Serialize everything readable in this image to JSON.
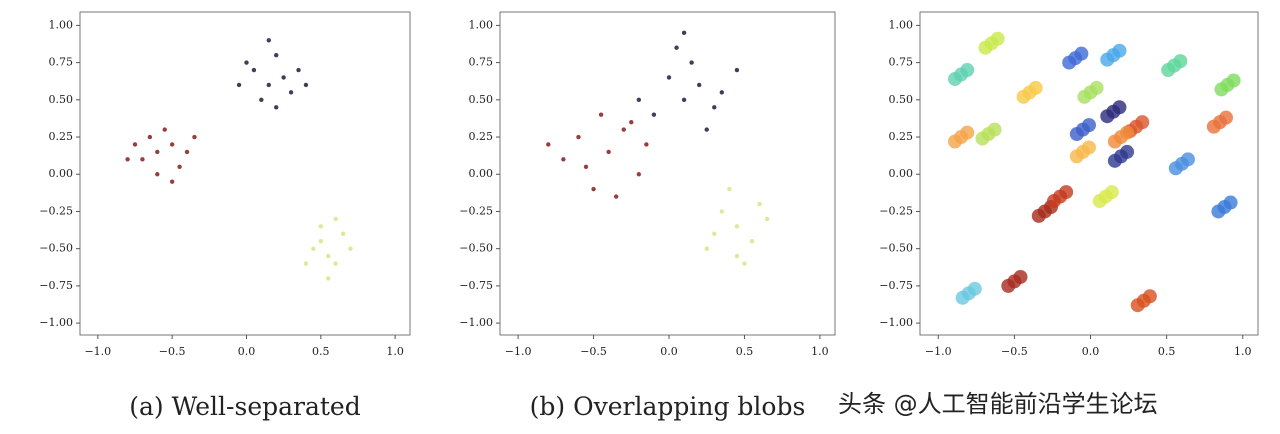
{
  "chart_data": [
    {
      "type": "scatter",
      "caption": "(a) Well-separated",
      "xlim": [
        -1.12,
        1.1
      ],
      "ylim": [
        -1.08,
        1.09
      ],
      "xticks": [
        {
          "value": -1,
          "label": "−1.0"
        },
        {
          "value": -0.5,
          "label": "−0.5"
        },
        {
          "value": 0,
          "label": "0.0"
        },
        {
          "value": 0.5,
          "label": "0.5"
        },
        {
          "value": 1,
          "label": "1.0"
        }
      ],
      "yticks": [
        {
          "value": 1,
          "label": "1.00"
        },
        {
          "value": 0.75,
          "label": "0.75"
        },
        {
          "value": 0.5,
          "label": "0.50"
        },
        {
          "value": 0.25,
          "label": "0.25"
        },
        {
          "value": 0,
          "label": "0.00"
        },
        {
          "value": -0.25,
          "label": "−0.25"
        },
        {
          "value": -0.5,
          "label": "−0.50"
        },
        {
          "value": -0.75,
          "label": "−0.75"
        },
        {
          "value": -1,
          "label": "−1.00"
        }
      ],
      "series": [
        {
          "color": "#8a2a2a",
          "x": [
            -0.6,
            -0.5,
            -0.7,
            -0.45,
            -0.55,
            -0.65,
            -0.4,
            -0.75,
            -0.5,
            -0.6,
            -0.35,
            -0.8
          ],
          "y": [
            0.15,
            0.2,
            0.1,
            0.05,
            0.3,
            0.25,
            0.15,
            0.2,
            -0.05,
            0.0,
            0.25,
            0.1
          ]
        },
        {
          "color": "#2a2a4a",
          "x": [
            0.15,
            0.25,
            0.05,
            0.3,
            0.1,
            0.2,
            0.35,
            -0.05,
            0.2,
            0.4,
            0.0,
            0.15
          ],
          "y": [
            0.6,
            0.65,
            0.7,
            0.55,
            0.5,
            0.8,
            0.7,
            0.6,
            0.45,
            0.6,
            0.75,
            0.9
          ]
        },
        {
          "color": "#d4ea8a",
          "x": [
            0.55,
            0.5,
            0.6,
            0.45,
            0.65,
            0.55,
            0.4,
            0.7,
            0.5,
            0.6
          ],
          "y": [
            -0.55,
            -0.45,
            -0.6,
            -0.5,
            -0.4,
            -0.7,
            -0.6,
            -0.5,
            -0.35,
            -0.3
          ]
        }
      ]
    },
    {
      "type": "scatter",
      "caption": "(b) Overlapping blobs",
      "xlim": [
        -1.12,
        1.1
      ],
      "ylim": [
        -1.08,
        1.09
      ],
      "xticks": [
        {
          "value": -1,
          "label": "−1.0"
        },
        {
          "value": -0.5,
          "label": "−0.5"
        },
        {
          "value": 0,
          "label": "0.0"
        },
        {
          "value": 0.5,
          "label": "0.5"
        },
        {
          "value": 1,
          "label": "1.0"
        }
      ],
      "yticks": [
        {
          "value": 1,
          "label": "1.00"
        },
        {
          "value": 0.75,
          "label": "0.75"
        },
        {
          "value": 0.5,
          "label": "0.50"
        },
        {
          "value": 0.25,
          "label": "0.25"
        },
        {
          "value": 0,
          "label": "0.00"
        },
        {
          "value": -0.25,
          "label": "−0.25"
        },
        {
          "value": -0.5,
          "label": "−0.50"
        },
        {
          "value": -0.75,
          "label": "−0.75"
        },
        {
          "value": -1,
          "label": "−1.00"
        }
      ],
      "series": [
        {
          "color": "#8a2a2a",
          "x": [
            -0.4,
            -0.3,
            -0.55,
            -0.2,
            -0.45,
            -0.6,
            -0.15,
            -0.7,
            -0.35,
            -0.5,
            -0.25,
            -0.8
          ],
          "y": [
            0.15,
            0.3,
            0.05,
            0.0,
            0.4,
            0.25,
            0.2,
            0.1,
            -0.15,
            -0.1,
            0.35,
            0.2
          ]
        },
        {
          "color": "#2a2a4a",
          "x": [
            0.1,
            0.2,
            0.0,
            0.3,
            -0.1,
            0.15,
            0.35,
            -0.2,
            0.25,
            0.45,
            0.05,
            0.1
          ],
          "y": [
            0.5,
            0.6,
            0.65,
            0.45,
            0.4,
            0.75,
            0.55,
            0.5,
            0.3,
            0.7,
            0.85,
            0.95
          ]
        },
        {
          "color": "#d4ea8a",
          "x": [
            0.45,
            0.35,
            0.55,
            0.3,
            0.6,
            0.45,
            0.25,
            0.65,
            0.4,
            0.5
          ],
          "y": [
            -0.35,
            -0.25,
            -0.45,
            -0.4,
            -0.2,
            -0.55,
            -0.5,
            -0.3,
            -0.1,
            -0.6
          ]
        }
      ]
    },
    {
      "type": "scatter",
      "xlim": [
        -1.12,
        1.1
      ],
      "ylim": [
        -1.08,
        1.09
      ],
      "xticks": [
        {
          "value": -1,
          "label": "−1.0"
        },
        {
          "value": -0.5,
          "label": "−0.5"
        },
        {
          "value": 0,
          "label": "0.0"
        },
        {
          "value": 0.5,
          "label": "0.5"
        },
        {
          "value": 1,
          "label": "1.0"
        }
      ],
      "yticks": [
        {
          "value": 1,
          "label": "1.00"
        },
        {
          "value": 0.75,
          "label": "0.75"
        },
        {
          "value": 0.5,
          "label": "0.50"
        },
        {
          "value": 0.25,
          "label": "0.25"
        },
        {
          "value": 0,
          "label": "0.00"
        },
        {
          "value": -0.25,
          "label": "−0.25"
        },
        {
          "value": -0.5,
          "label": "−0.50"
        },
        {
          "value": -0.75,
          "label": "−0.75"
        },
        {
          "value": -1,
          "label": "−1.00"
        }
      ],
      "series": [
        {
          "color": "#c8e84a",
          "x": [
            -0.65,
            -0.61,
            -0.69
          ],
          "y": [
            0.88,
            0.91,
            0.85
          ]
        },
        {
          "color": "#5ed1b0",
          "x": [
            -0.85,
            -0.81,
            -0.89
          ],
          "y": [
            0.67,
            0.7,
            0.64
          ]
        },
        {
          "color": "#f7c948",
          "x": [
            -0.4,
            -0.36,
            -0.44
          ],
          "y": [
            0.55,
            0.58,
            0.52
          ]
        },
        {
          "color": "#f5a44a",
          "x": [
            -0.85,
            -0.81,
            -0.89
          ],
          "y": [
            0.25,
            0.28,
            0.22
          ]
        },
        {
          "color": "#b8e05a",
          "x": [
            -0.67,
            -0.63,
            -0.71
          ],
          "y": [
            0.27,
            0.3,
            0.24
          ]
        },
        {
          "color": "#3e6ad6",
          "x": [
            -0.1,
            -0.06,
            -0.14
          ],
          "y": [
            0.78,
            0.81,
            0.75
          ]
        },
        {
          "color": "#4aa8e8",
          "x": [
            0.15,
            0.19,
            0.11
          ],
          "y": [
            0.8,
            0.83,
            0.77
          ]
        },
        {
          "color": "#5ed69a",
          "x": [
            0.55,
            0.59,
            0.51
          ],
          "y": [
            0.73,
            0.76,
            0.7
          ]
        },
        {
          "color": "#7fdc5e",
          "x": [
            0.9,
            0.94,
            0.86
          ],
          "y": [
            0.6,
            0.63,
            0.57
          ]
        },
        {
          "color": "#a8e060",
          "x": [
            0.0,
            0.04,
            -0.04
          ],
          "y": [
            0.55,
            0.58,
            0.52
          ]
        },
        {
          "color": "#2a2a7a",
          "x": [
            0.15,
            0.19,
            0.11
          ],
          "y": [
            0.42,
            0.45,
            0.39
          ]
        },
        {
          "color": "#3c5fc8",
          "x": [
            -0.05,
            -0.01,
            -0.09
          ],
          "y": [
            0.3,
            0.33,
            0.27
          ]
        },
        {
          "color": "#d9562a",
          "x": [
            0.3,
            0.34,
            0.26
          ],
          "y": [
            0.32,
            0.35,
            0.29
          ]
        },
        {
          "color": "#f08a3a",
          "x": [
            0.2,
            0.24,
            0.16
          ],
          "y": [
            0.25,
            0.28,
            0.22
          ]
        },
        {
          "color": "#f7b84a",
          "x": [
            -0.05,
            -0.01,
            -0.09
          ],
          "y": [
            0.15,
            0.18,
            0.12
          ]
        },
        {
          "color": "#2e3a8e",
          "x": [
            0.2,
            0.24,
            0.16
          ],
          "y": [
            0.12,
            0.15,
            0.09
          ]
        },
        {
          "color": "#4a8ee0",
          "x": [
            0.6,
            0.64,
            0.56
          ],
          "y": [
            0.07,
            0.1,
            0.04
          ]
        },
        {
          "color": "#e8703a",
          "x": [
            0.85,
            0.89,
            0.81
          ],
          "y": [
            0.35,
            0.38,
            0.32
          ]
        },
        {
          "color": "#a62a1a",
          "x": [
            -0.3,
            -0.26,
            -0.34
          ],
          "y": [
            -0.25,
            -0.22,
            -0.28
          ]
        },
        {
          "color": "#c43a1e",
          "x": [
            -0.2,
            -0.16,
            -0.24
          ],
          "y": [
            -0.15,
            -0.12,
            -0.18
          ]
        },
        {
          "color": "#d8e84a",
          "x": [
            0.1,
            0.14,
            0.06
          ],
          "y": [
            -0.15,
            -0.12,
            -0.18
          ]
        },
        {
          "color": "#3a7ad8",
          "x": [
            0.88,
            0.92,
            0.84
          ],
          "y": [
            -0.22,
            -0.19,
            -0.25
          ]
        },
        {
          "color": "#a82a1e",
          "x": [
            -0.5,
            -0.46,
            -0.54
          ],
          "y": [
            -0.72,
            -0.69,
            -0.75
          ]
        },
        {
          "color": "#6ac8e0",
          "x": [
            -0.8,
            -0.76,
            -0.84
          ],
          "y": [
            -0.8,
            -0.77,
            -0.83
          ]
        },
        {
          "color": "#d8501e",
          "x": [
            0.35,
            0.39,
            0.31
          ],
          "y": [
            -0.85,
            -0.82,
            -0.88
          ]
        }
      ]
    }
  ],
  "watermark": "头条 @人工智能前沿学生论坛"
}
